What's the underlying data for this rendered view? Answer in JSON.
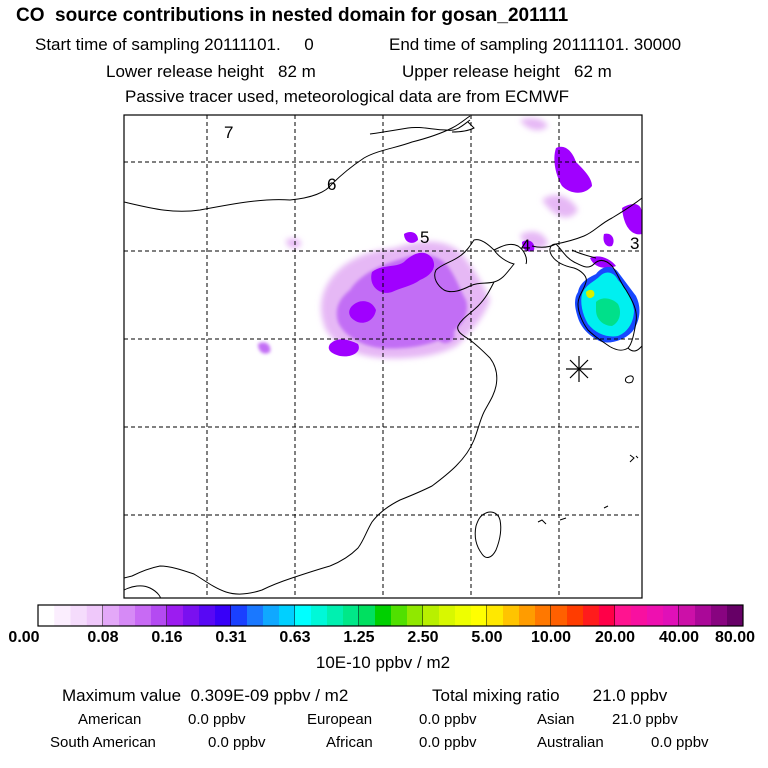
{
  "title": "CO  source contributions in nested domain for gosan_201111",
  "header": {
    "start_label": "Start time of sampling 20111101.     0",
    "end_label": "End time of sampling 20111101. 30000",
    "lower_label": "Lower release height   82 m",
    "upper_label": "Upper release height   62 m",
    "tracer_note": "Passive tracer used, meteorological data are from ECMWF"
  },
  "map": {
    "grid_cell_labels": [
      "7",
      "6",
      "5",
      "4",
      "3"
    ],
    "receptor_marker": "asterisk",
    "colors": {
      "low_plume": "#e6b8f5",
      "mid_plume": "#c26ef5",
      "high_plume": "#a000ff",
      "peak_cyan": "#00f0f0",
      "peak_green": "#00e08a",
      "peak_yellow": "#d8f000"
    }
  },
  "colorbar": {
    "ticks": [
      "0.00",
      "0.08",
      "0.16",
      "0.31",
      "0.63",
      "1.25",
      "2.50",
      "5.00",
      "10.00",
      "20.00",
      "40.00",
      "80.00"
    ],
    "unit": "10E-10 ppbv / m2",
    "colors": [
      [
        "#ffffff",
        "#fbeefe",
        "#f5dcfc",
        "#efc8fa"
      ],
      [
        "#e3a8f8",
        "#d68af6",
        "#c86af4",
        "#b44af2"
      ],
      [
        "#9c1cf0",
        "#7a10f0",
        "#5808f4",
        "#3800f8"
      ],
      [
        "#1a40ff",
        "#1a78ff",
        "#10a8ff",
        "#00d0ff"
      ],
      [
        "#00ffff",
        "#00f8d8",
        "#00f0b0",
        "#00e888"
      ],
      [
        "#00e060",
        "#00d000",
        "#50e000",
        "#90e800"
      ],
      [
        "#b8f000",
        "#d8f800",
        "#eeff00",
        "#ffff00"
      ],
      [
        "#ffe800",
        "#ffc400",
        "#ff9c00",
        "#ff7800"
      ],
      [
        "#ff6000",
        "#ff3c00",
        "#ff1c1c",
        "#ff0048"
      ],
      [
        "#ff1490",
        "#f810a0",
        "#ee10b0",
        "#e010b8"
      ],
      [
        "#cc10a8",
        "#aa0898",
        "#880480",
        "#660066"
      ]
    ]
  },
  "footer": {
    "max_label": "Maximum value  0.309E-09 ppbv / m2",
    "total_label": "Total mixing ratio       21.0 ppbv",
    "regions": [
      {
        "name": "American",
        "value": "0.0 ppbv"
      },
      {
        "name": "European",
        "value": "0.0 ppbv"
      },
      {
        "name": "Asian",
        "value": "21.0 ppbv"
      },
      {
        "name": "South American",
        "value": "0.0 ppbv"
      },
      {
        "name": "African",
        "value": "0.0 ppbv"
      },
      {
        "name": "Australian",
        "value": "0.0 ppbv"
      }
    ]
  }
}
